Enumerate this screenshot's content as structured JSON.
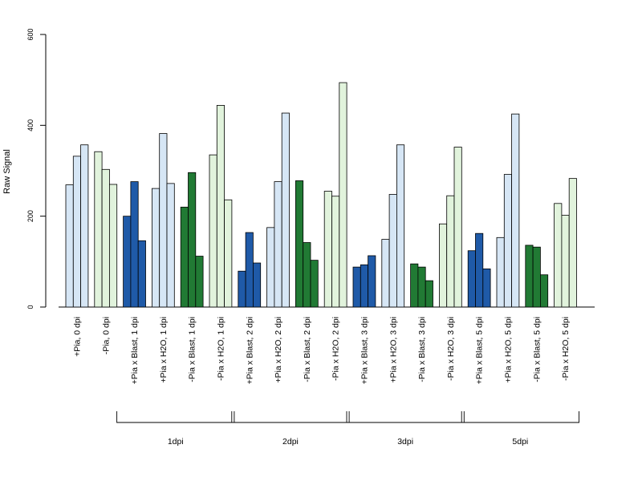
{
  "chart_data": {
    "type": "bar",
    "ylabel": "Raw Signal",
    "ylim": [
      0,
      600
    ],
    "yticks": [
      0,
      200,
      400,
      600
    ],
    "categories": [
      "+Pia, 0 dpi",
      "-Pia, 0 dpi",
      "+Pia x Blast, 1 dpi",
      "+Pia x H2O, 1 dpi",
      "-Pia x Blast, 1 dpi",
      "-Pia x H2O, 1 dpi",
      "+Pia x Blast, 2 dpi",
      "+Pia x H2O, 2 dpi",
      "-Pia x Blast, 2 dpi",
      "-Pia x H2O, 2 dpi",
      "+Pia x Blast, 3 dpi",
      "+Pia x H2O, 3 dpi",
      "-Pia x Blast, 3 dpi",
      "-Pia x H2O, 3 dpi",
      "+Pia x Blast, 5 dpi",
      "+Pia x H2O, 5 dpi",
      "-Pia x Blast, 5 dpi",
      "-Pia x H2O, 5 dpi"
    ],
    "bar_colors": [
      "#d6e6f5",
      "#e1f3dc",
      "#1f5aa8",
      "#d6e6f5",
      "#217a34",
      "#e1f3dc",
      "#1f5aa8",
      "#d6e6f5",
      "#217a34",
      "#e1f3dc",
      "#1f5aa8",
      "#d6e6f5",
      "#217a34",
      "#e1f3dc",
      "#1f5aa8",
      "#d6e6f5",
      "#217a34",
      "#e1f3dc"
    ],
    "replicates": [
      [
        269,
        332,
        357
      ],
      [
        342,
        303,
        270
      ],
      [
        200,
        276,
        146
      ],
      [
        261,
        382,
        272
      ],
      [
        220,
        296,
        112
      ],
      [
        335,
        444,
        236
      ],
      [
        79,
        164,
        97
      ],
      [
        175,
        276,
        427
      ],
      [
        278,
        142,
        103
      ],
      [
        255,
        244,
        494
      ],
      [
        88,
        93,
        113
      ],
      [
        149,
        248,
        357
      ],
      [
        95,
        88,
        58
      ],
      [
        183,
        245,
        352
      ],
      [
        124,
        162,
        84
      ],
      [
        153,
        292,
        425
      ],
      [
        136,
        132,
        71
      ],
      [
        228,
        202,
        283
      ]
    ],
    "group_brackets": [
      {
        "label": "1dpi",
        "from": 2,
        "to": 5
      },
      {
        "label": "2dpi",
        "from": 6,
        "to": 9
      },
      {
        "label": "3dpi",
        "from": 10,
        "to": 13
      },
      {
        "label": "5dpi",
        "from": 14,
        "to": 17
      }
    ],
    "grid": false,
    "legend": "none"
  }
}
